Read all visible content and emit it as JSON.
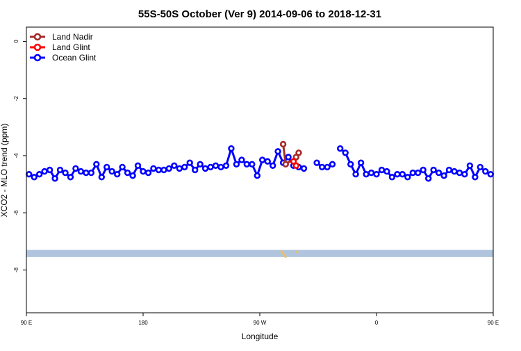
{
  "chart_data": {
    "type": "line",
    "title": "55S-50S October (Ver 9)   2014-09-06 to 2018-12-31",
    "xlabel": "Longitude",
    "ylabel": "XCO2 - MLO trend (ppm)",
    "xlim": [
      90,
      450
    ],
    "ylim": [
      -9.5,
      0.5
    ],
    "x_ticks": [
      {
        "value": 90,
        "label": "90 E"
      },
      {
        "value": 180,
        "label": "180"
      },
      {
        "value": 270,
        "label": "90 W"
      },
      {
        "value": 360,
        "label": "0"
      },
      {
        "value": 450,
        "label": "90 E"
      },
      {
        "value": 540,
        "label": "180"
      }
    ],
    "y_ticks": [
      {
        "value": 0,
        "label": "0"
      },
      {
        "value": -2,
        "label": "-2"
      },
      {
        "value": -4,
        "label": "-4"
      },
      {
        "value": -6,
        "label": "-6"
      },
      {
        "value": -8,
        "label": "-8"
      }
    ],
    "legend_position": "top-left",
    "series": [
      {
        "name": "Land Nadir",
        "color": "#a52a2a",
        "points": [
          [
            288,
            -3.6
          ],
          [
            290,
            -4.3
          ],
          [
            298,
            -4.05
          ],
          [
            300,
            -3.9
          ]
        ]
      },
      {
        "name": "Land Glint",
        "color": "#ff0000",
        "points": [
          [
            296,
            -4.2
          ],
          [
            298,
            -4.35
          ]
        ]
      },
      {
        "name": "Ocean Glint",
        "color": "#0000ff",
        "segments": [
          [
            [
              92,
              -4.65
            ],
            [
              96,
              -4.75
            ],
            [
              100,
              -4.65
            ],
            [
              104,
              -4.55
            ],
            [
              108,
              -4.5
            ],
            [
              112,
              -4.8
            ],
            [
              116,
              -4.5
            ],
            [
              120,
              -4.6
            ],
            [
              124,
              -4.75
            ],
            [
              128,
              -4.45
            ],
            [
              132,
              -4.55
            ],
            [
              136,
              -4.6
            ],
            [
              140,
              -4.6
            ],
            [
              144,
              -4.3
            ],
            [
              148,
              -4.75
            ],
            [
              152,
              -4.4
            ],
            [
              156,
              -4.55
            ],
            [
              160,
              -4.65
            ],
            [
              164,
              -4.4
            ],
            [
              168,
              -4.6
            ],
            [
              172,
              -4.7
            ],
            [
              176,
              -4.35
            ],
            [
              180,
              -4.55
            ],
            [
              184,
              -4.6
            ],
            [
              188,
              -4.45
            ],
            [
              192,
              -4.5
            ],
            [
              196,
              -4.5
            ],
            [
              200,
              -4.45
            ],
            [
              204,
              -4.35
            ],
            [
              208,
              -4.45
            ],
            [
              212,
              -4.4
            ],
            [
              216,
              -4.25
            ],
            [
              220,
              -4.5
            ],
            [
              224,
              -4.3
            ],
            [
              228,
              -4.45
            ],
            [
              232,
              -4.4
            ],
            [
              236,
              -4.35
            ],
            [
              240,
              -4.4
            ],
            [
              244,
              -4.35
            ],
            [
              248,
              -3.75
            ],
            [
              252,
              -4.3
            ],
            [
              256,
              -4.15
            ],
            [
              260,
              -4.3
            ],
            [
              264,
              -4.3
            ],
            [
              268,
              -4.7
            ],
            [
              272,
              -4.15
            ],
            [
              276,
              -4.2
            ],
            [
              280,
              -4.35
            ],
            [
              284,
              -3.85
            ],
            [
              288,
              -4.25
            ],
            [
              292,
              -4.05
            ],
            [
              296,
              -4.35
            ],
            [
              300,
              -4.4
            ],
            [
              304,
              -4.45
            ]
          ],
          [
            [
              314,
              -4.25
            ],
            [
              318,
              -4.4
            ],
            [
              322,
              -4.4
            ],
            [
              326,
              -4.3
            ]
          ],
          [
            [
              332,
              -3.75
            ],
            [
              336,
              -3.9
            ],
            [
              340,
              -4.3
            ],
            [
              344,
              -4.65
            ],
            [
              348,
              -4.25
            ],
            [
              352,
              -4.65
            ],
            [
              356,
              -4.6
            ],
            [
              360,
              -4.65
            ],
            [
              364,
              -4.5
            ],
            [
              368,
              -4.55
            ],
            [
              372,
              -4.75
            ],
            [
              376,
              -4.65
            ],
            [
              380,
              -4.65
            ],
            [
              384,
              -4.75
            ],
            [
              388,
              -4.6
            ],
            [
              392,
              -4.6
            ],
            [
              396,
              -4.5
            ],
            [
              400,
              -4.8
            ],
            [
              404,
              -4.5
            ],
            [
              408,
              -4.6
            ],
            [
              412,
              -4.7
            ],
            [
              416,
              -4.5
            ],
            [
              420,
              -4.55
            ],
            [
              424,
              -4.6
            ],
            [
              428,
              -4.65
            ],
            [
              432,
              -4.35
            ],
            [
              436,
              -4.75
            ],
            [
              440,
              -4.4
            ],
            [
              444,
              -4.55
            ],
            [
              448,
              -4.65
            ]
          ]
        ]
      }
    ],
    "colors": {
      "band": "#b0c4de",
      "land_marks": "#f0c060"
    }
  }
}
